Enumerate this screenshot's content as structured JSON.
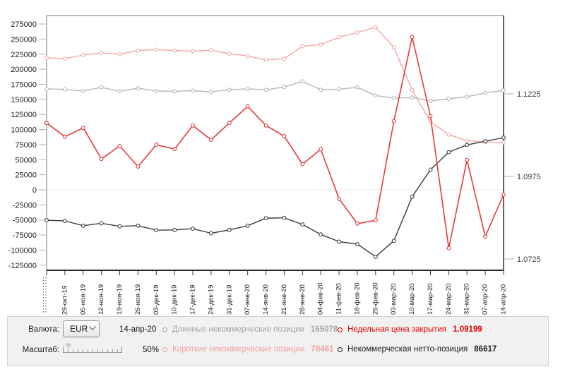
{
  "chart_data": {
    "type": "line",
    "title": "",
    "x_labels": [
      "",
      "29-окт-19",
      "05-ноя-19",
      "12-ноя-19",
      "19-ноя-19",
      "26-ноя-19",
      "03-дек-19",
      "10-дек-19",
      "17-дек-19",
      "24-дек-19",
      "31-дек-19",
      "07-янв-20",
      "14-янв-20",
      "21-янв-20",
      "28-янв-20",
      "04-фев-20",
      "11-фев-20",
      "18-фев-20",
      "25-фев-20",
      "03-мар-20",
      "10-мар-20",
      "17-мар-20",
      "24-мар-20",
      "31-мар-20",
      "07-апр-20",
      "14-апр-20"
    ],
    "x_first_label_clipped": true,
    "left_axis": {
      "tick_labels": [
        "275000",
        "250000",
        "225000",
        "200000",
        "175000",
        "150000",
        "125000",
        "100000",
        "75000",
        "50000",
        "25000",
        "0",
        "-25000",
        "-50000",
        "-75000",
        "-100000",
        "-125000"
      ],
      "tick_values": [
        275000,
        250000,
        225000,
        200000,
        175000,
        150000,
        125000,
        100000,
        75000,
        50000,
        25000,
        0,
        -25000,
        -50000,
        -75000,
        -100000,
        -125000
      ]
    },
    "right_axis": {
      "tick_labels": [
        "1.1225",
        "1.0975",
        "1.0725"
      ],
      "tick_values": [
        1.1225,
        1.0975,
        1.0725
      ]
    },
    "grid": "zero-line-only",
    "legend_position": "bottom-panel",
    "series": [
      {
        "name": "Короткие некоммерческие позиции",
        "axis": "left",
        "color": "#f3a6a6",
        "values": [
          219000,
          217500,
          223500,
          227000,
          225000,
          231000,
          232500,
          231000,
          230000,
          231500,
          226000,
          222000,
          215500,
          217500,
          238000,
          241000,
          253000,
          261000,
          269500,
          236000,
          165500,
          113000,
          91500,
          81500,
          79500,
          78461
        ]
      },
      {
        "name": "Длинные некоммерческие позиции",
        "axis": "left",
        "color": "#b7b7b7",
        "values": [
          167500,
          166500,
          164000,
          170000,
          163500,
          168500,
          164000,
          163500,
          164500,
          162500,
          166000,
          167500,
          166000,
          170500,
          180000,
          166000,
          167000,
          170000,
          156500,
          152000,
          153000,
          147500,
          151000,
          154500,
          160500,
          165078
        ]
      },
      {
        "name": "Некоммерческая нетто-позиция",
        "axis": "left",
        "color": "#3c3c3c",
        "values": [
          -50500,
          -51500,
          -59500,
          -55500,
          -60500,
          -59500,
          -67000,
          -66500,
          -64500,
          -72000,
          -66500,
          -59500,
          -47000,
          -46500,
          -57500,
          -74000,
          -86000,
          -90000,
          -111000,
          -84500,
          -11500,
          33500,
          62500,
          74500,
          80500,
          86617
        ]
      },
      {
        "name": "Недельная цена закрытия",
        "axis": "right",
        "color": "#e23c3c",
        "values": [
          1.1137,
          1.1095,
          1.1122,
          1.1028,
          1.1067,
          1.1005,
          1.1071,
          1.1058,
          1.1129,
          1.1086,
          1.1137,
          1.1187,
          1.1129,
          1.1097,
          1.1012,
          1.1057,
          1.0907,
          1.0832,
          1.0842,
          1.1142,
          1.1397,
          1.1157,
          1.0758,
          1.1025,
          1.0793,
          1.09199
        ]
      }
    ]
  },
  "panel": {
    "currency_label": "Валюта:",
    "currency_value": "EUR",
    "report_date": "14-апр-20",
    "scale_label": "Масштаб:",
    "scale_value": "50%",
    "legend": [
      {
        "label": "Длинные некоммерческие позиции",
        "value": "165078",
        "color": "#a6a6a6"
      },
      {
        "label": "Недельная цена закрытия",
        "value": "1.09199",
        "color": "#e10000"
      },
      {
        "label": "Короткие некоммерческие позиции",
        "value": "78461",
        "color": "#f2a0a0"
      },
      {
        "label": "Некоммерческая нетто-позиция",
        "value": "86617",
        "color": "#1e1e1e"
      }
    ]
  }
}
